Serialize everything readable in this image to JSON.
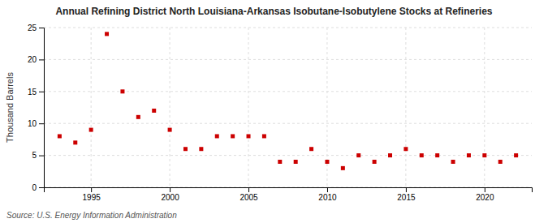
{
  "chart_data": {
    "type": "scatter",
    "title": "Annual Refining District North Louisiana-Arkansas Isobutane-Isobutylene Stocks at Refineries",
    "ylabel": "Thousand Barrels",
    "source": "Source: U.S. Energy Information Administration",
    "x": [
      1993,
      1994,
      1995,
      1996,
      1997,
      1998,
      1999,
      2000,
      2001,
      2002,
      2003,
      2004,
      2005,
      2006,
      2007,
      2008,
      2009,
      2010,
      2011,
      2012,
      2013,
      2014,
      2015,
      2016,
      2017,
      2018,
      2019,
      2020,
      2021,
      2022
    ],
    "values": [
      8,
      7,
      9,
      24,
      15,
      11,
      12,
      9,
      6,
      6,
      8,
      8,
      8,
      8,
      4,
      4,
      6,
      4,
      3,
      5,
      4,
      5,
      6,
      5,
      5,
      4,
      5,
      5,
      4,
      5
    ],
    "color": "#cc0000",
    "marker": "square",
    "xlim": [
      1992,
      2023
    ],
    "ylim": [
      0,
      25
    ],
    "xticks": [
      1995,
      2000,
      2005,
      2010,
      2015,
      2020
    ],
    "yticks": [
      0,
      5,
      10,
      15,
      20,
      25
    ],
    "grid": true
  }
}
